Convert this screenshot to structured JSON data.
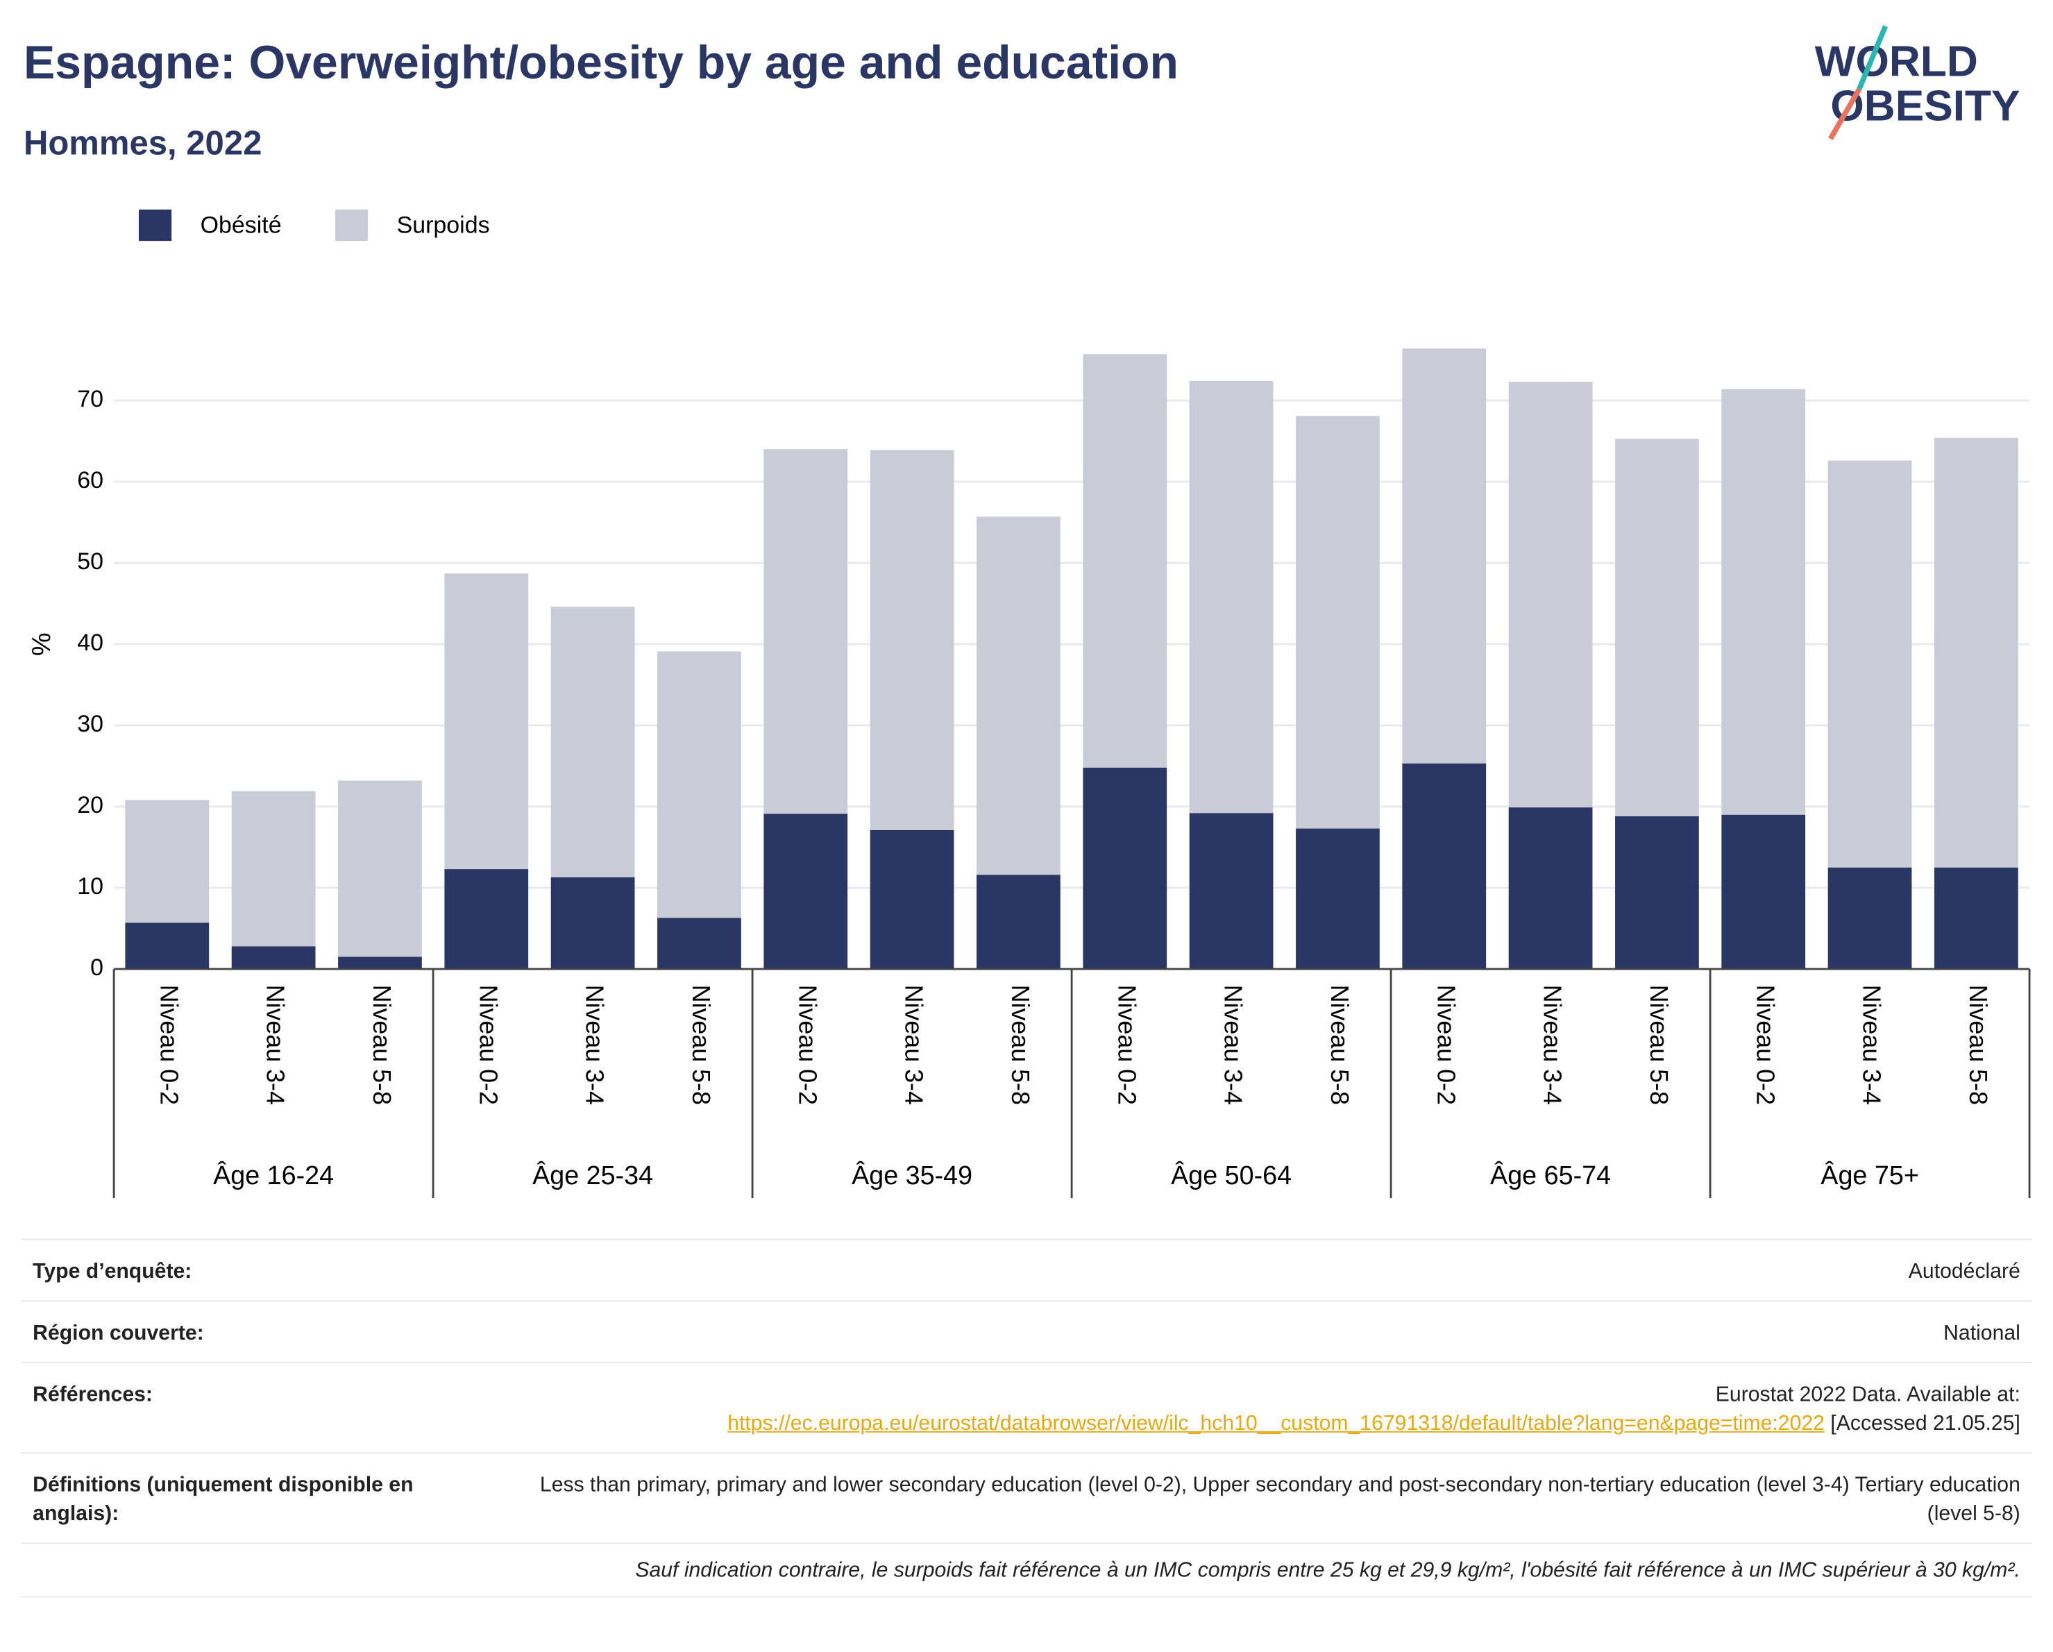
{
  "chart_data": {
    "type": "stacked_bar",
    "title": "Espagne: Overweight/obesity by age and education",
    "subtitle": "Hommes, 2022",
    "ylabel": "%",
    "categories": [
      "Niveau 0-2",
      "Niveau 3-4",
      "Niveau 5-8",
      "Niveau 0-2",
      "Niveau 3-4",
      "Niveau 5-8",
      "Niveau 0-2",
      "Niveau 3-4",
      "Niveau 5-8",
      "Niveau 0-2",
      "Niveau 3-4",
      "Niveau 5-8",
      "Niveau 0-2",
      "Niveau 3-4",
      "Niveau 5-8",
      "Niveau 0-2",
      "Niveau 3-4",
      "Niveau 5-8"
    ],
    "groups": [
      "Âge 16-24",
      "Âge 25-34",
      "Âge 35-49",
      "Âge 50-64",
      "Âge 65-74",
      "Âge 75+"
    ],
    "series": [
      {
        "name": "Obésité",
        "color": "#2a3663",
        "values": [
          5.7,
          2.8,
          1.5,
          12.3,
          11.3,
          6.3,
          19.1,
          17.1,
          11.6,
          24.8,
          19.2,
          17.3,
          25.3,
          19.9,
          18.8,
          19.0,
          12.5,
          12.5
        ]
      },
      {
        "name": "Surpoids",
        "color": "#c9cbd7",
        "values": [
          15.1,
          19.1,
          21.7,
          36.4,
          33.3,
          32.8,
          44.9,
          46.8,
          44.1,
          50.9,
          53.2,
          50.8,
          51.1,
          52.4,
          46.5,
          52.4,
          50.1,
          52.9
        ]
      }
    ],
    "ylim": [
      0,
      79
    ],
    "yticks": [
      0,
      10,
      20,
      30,
      40,
      50,
      60,
      70
    ],
    "grid": true,
    "legend": "top-left"
  },
  "logo": {
    "line1": "WORLD",
    "line2": "OBESITY"
  },
  "footer": {
    "rows": [
      {
        "label": "Type d’enquête:",
        "value": "Autodéclaré"
      },
      {
        "label": "Région couverte:",
        "value": "National"
      },
      {
        "label": "Références:",
        "value": "Eurostat 2022 Data. Available at:",
        "link": "https://ec.europa.eu/eurostat/databrowser/view/ilc_hch10__custom_16791318/default/table?lang=en&page=time:2022",
        "after": "[Accessed 21.05.25]"
      },
      {
        "label": "Définitions (uniquement disponible en anglais):",
        "value": "Less than primary, primary and lower secondary education (level 0-2), Upper secondary and post-secondary non-tertiary education (level 3-4) Tertiary education (level 5-8)"
      }
    ],
    "note": "Sauf indication contraire, le surpoids fait référence à un IMC compris entre 25 kg et 29,9 kg/m², l'obésité fait référence à un IMC supérieur à 30 kg/m²."
  }
}
